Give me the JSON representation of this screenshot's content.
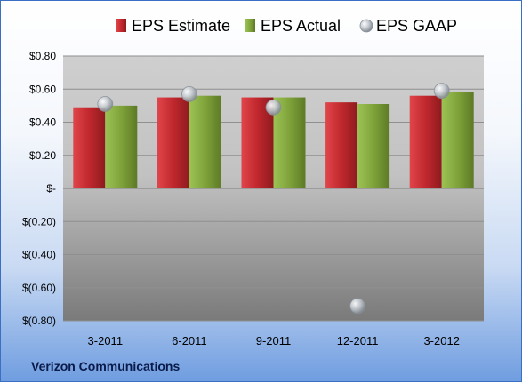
{
  "chart_data": {
    "type": "bar",
    "categories": [
      "3-2011",
      "6-2011",
      "9-2011",
      "12-2011",
      "3-2012"
    ],
    "series": [
      {
        "name": "EPS Estimate",
        "kind": "bar",
        "color": "#c0282d",
        "values": [
          0.49,
          0.55,
          0.55,
          0.52,
          0.56
        ]
      },
      {
        "name": "EPS Actual",
        "kind": "bar",
        "color": "#7fa33a",
        "values": [
          0.5,
          0.56,
          0.55,
          0.51,
          0.58
        ]
      },
      {
        "name": "EPS GAAP",
        "kind": "scatter",
        "color": "#a8b0b8",
        "values": [
          0.51,
          0.57,
          0.49,
          -0.71,
          0.59
        ]
      }
    ],
    "ylim": [
      -0.8,
      0.8
    ],
    "y_ticks": [
      {
        "v": 0.8,
        "label": "$0.80"
      },
      {
        "v": 0.6,
        "label": "$0.60"
      },
      {
        "v": 0.4,
        "label": "$0.40"
      },
      {
        "v": 0.2,
        "label": "$0.20"
      },
      {
        "v": 0.0,
        "label": "$-"
      },
      {
        "v": -0.2,
        "label": "$(0.20)"
      },
      {
        "v": -0.4,
        "label": "$(0.40)"
      },
      {
        "v": -0.6,
        "label": "$(0.60)"
      },
      {
        "v": -0.8,
        "label": "$(0.80)"
      }
    ],
    "grid": true,
    "legend_position": "top"
  },
  "footer_label": "Verizon Communications"
}
